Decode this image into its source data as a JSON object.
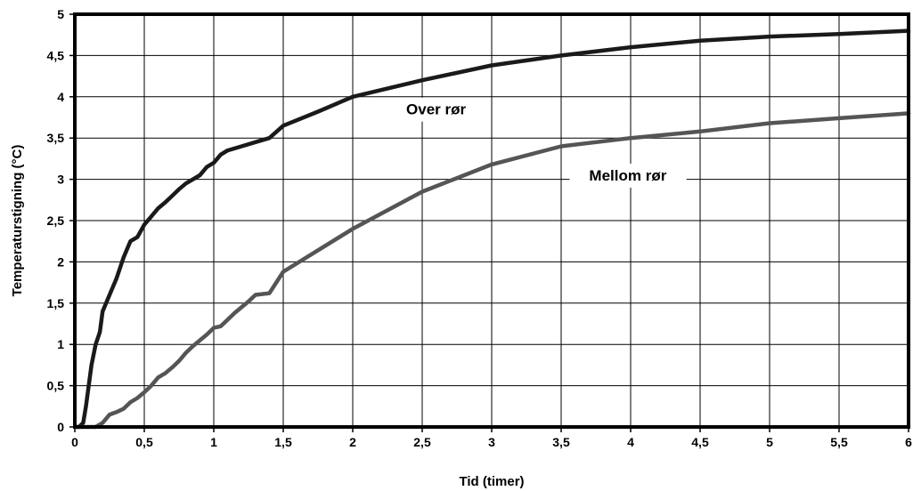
{
  "chart_data": {
    "type": "line",
    "title": "",
    "xlabel": "Tid (timer)",
    "ylabel": "Temperaturstigning (°C)",
    "xlim": [
      0,
      6
    ],
    "ylim": [
      0,
      5
    ],
    "grid": true,
    "x_ticks": [
      {
        "value": 0,
        "label": "0"
      },
      {
        "value": 0.5,
        "label": "0,5"
      },
      {
        "value": 1,
        "label": "1"
      },
      {
        "value": 1.5,
        "label": "1,5"
      },
      {
        "value": 2,
        "label": "2"
      },
      {
        "value": 2.5,
        "label": "2,5"
      },
      {
        "value": 3,
        "label": "3"
      },
      {
        "value": 3.5,
        "label": "3,5"
      },
      {
        "value": 4,
        "label": "4"
      },
      {
        "value": 4.5,
        "label": "4,5"
      },
      {
        "value": 5,
        "label": "5"
      },
      {
        "value": 5.5,
        "label": "5,5"
      },
      {
        "value": 6,
        "label": "6"
      }
    ],
    "y_ticks": [
      {
        "value": 0,
        "label": "0"
      },
      {
        "value": 0.5,
        "label": "0,5"
      },
      {
        "value": 1,
        "label": "1"
      },
      {
        "value": 1.5,
        "label": "1,5"
      },
      {
        "value": 2,
        "label": "2"
      },
      {
        "value": 2.5,
        "label": "2,5"
      },
      {
        "value": 3,
        "label": "3"
      },
      {
        "value": 3.5,
        "label": "3,5"
      },
      {
        "value": 4,
        "label": "4"
      },
      {
        "value": 4.5,
        "label": "4,5"
      },
      {
        "value": 5,
        "label": "5"
      }
    ],
    "series": [
      {
        "name": "Over rør",
        "color": "#1a1a1a",
        "label_anchor": {
          "x": 2.6,
          "y": 3.85
        },
        "points": [
          [
            0,
            0
          ],
          [
            0.03,
            0
          ],
          [
            0.06,
            0.05
          ],
          [
            0.08,
            0.25
          ],
          [
            0.1,
            0.5
          ],
          [
            0.12,
            0.75
          ],
          [
            0.15,
            1.0
          ],
          [
            0.18,
            1.15
          ],
          [
            0.2,
            1.4
          ],
          [
            0.25,
            1.6
          ],
          [
            0.3,
            1.8
          ],
          [
            0.35,
            2.05
          ],
          [
            0.4,
            2.25
          ],
          [
            0.45,
            2.3
          ],
          [
            0.5,
            2.45
          ],
          [
            0.55,
            2.55
          ],
          [
            0.6,
            2.65
          ],
          [
            0.65,
            2.72
          ],
          [
            0.7,
            2.8
          ],
          [
            0.75,
            2.88
          ],
          [
            0.8,
            2.95
          ],
          [
            0.9,
            3.05
          ],
          [
            0.95,
            3.15
          ],
          [
            1.0,
            3.2
          ],
          [
            1.05,
            3.3
          ],
          [
            1.1,
            3.35
          ],
          [
            1.2,
            3.4
          ],
          [
            1.3,
            3.45
          ],
          [
            1.4,
            3.5
          ],
          [
            1.5,
            3.65
          ],
          [
            1.75,
            3.82
          ],
          [
            2.0,
            4.0
          ],
          [
            2.5,
            4.2
          ],
          [
            3.0,
            4.38
          ],
          [
            3.5,
            4.5
          ],
          [
            4.0,
            4.6
          ],
          [
            4.5,
            4.68
          ],
          [
            5.0,
            4.73
          ],
          [
            5.5,
            4.76
          ],
          [
            6.0,
            4.8
          ]
        ]
      },
      {
        "name": "Mellom rør",
        "color": "#555555",
        "label_anchor": {
          "x": 3.98,
          "y": 3.05
        },
        "points": [
          [
            0,
            0
          ],
          [
            0.15,
            0
          ],
          [
            0.2,
            0.05
          ],
          [
            0.25,
            0.15
          ],
          [
            0.3,
            0.18
          ],
          [
            0.35,
            0.22
          ],
          [
            0.4,
            0.3
          ],
          [
            0.45,
            0.35
          ],
          [
            0.5,
            0.42
          ],
          [
            0.55,
            0.5
          ],
          [
            0.6,
            0.6
          ],
          [
            0.65,
            0.65
          ],
          [
            0.7,
            0.72
          ],
          [
            0.75,
            0.8
          ],
          [
            0.8,
            0.9
          ],
          [
            0.85,
            0.98
          ],
          [
            0.9,
            1.05
          ],
          [
            0.95,
            1.12
          ],
          [
            1.0,
            1.2
          ],
          [
            1.05,
            1.22
          ],
          [
            1.1,
            1.3
          ],
          [
            1.15,
            1.38
          ],
          [
            1.2,
            1.45
          ],
          [
            1.25,
            1.52
          ],
          [
            1.3,
            1.6
          ],
          [
            1.4,
            1.62
          ],
          [
            1.5,
            1.88
          ],
          [
            2.0,
            2.4
          ],
          [
            2.5,
            2.85
          ],
          [
            3.0,
            3.18
          ],
          [
            3.5,
            3.4
          ],
          [
            4.0,
            3.5
          ],
          [
            4.5,
            3.58
          ],
          [
            5.0,
            3.68
          ],
          [
            5.5,
            3.74
          ],
          [
            6.0,
            3.8
          ]
        ]
      }
    ]
  }
}
